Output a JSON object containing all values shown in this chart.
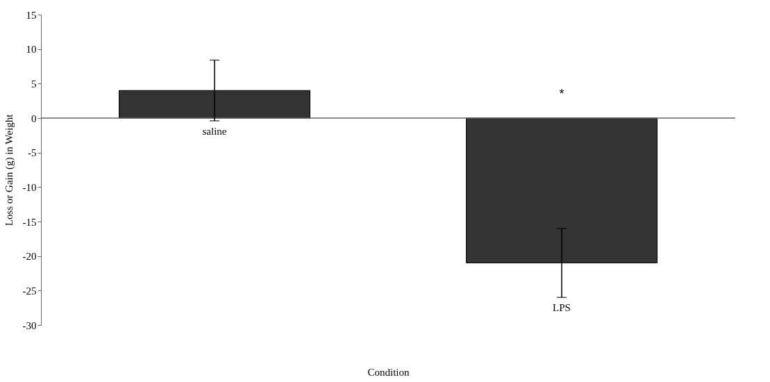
{
  "chart_data": {
    "type": "bar",
    "xlabel": "Condition",
    "ylabel": "Loss or Gain (g) in Weight",
    "categories": [
      "saline",
      "LPS"
    ],
    "values": [
      4,
      -21
    ],
    "errors": [
      4.4,
      5
    ],
    "color": "#333333",
    "ylim": [
      -30,
      15
    ],
    "yticks": [
      -30,
      -25,
      -20,
      -15,
      -10,
      -5,
      0,
      5,
      10,
      15
    ],
    "annotations": [
      "*"
    ]
  }
}
